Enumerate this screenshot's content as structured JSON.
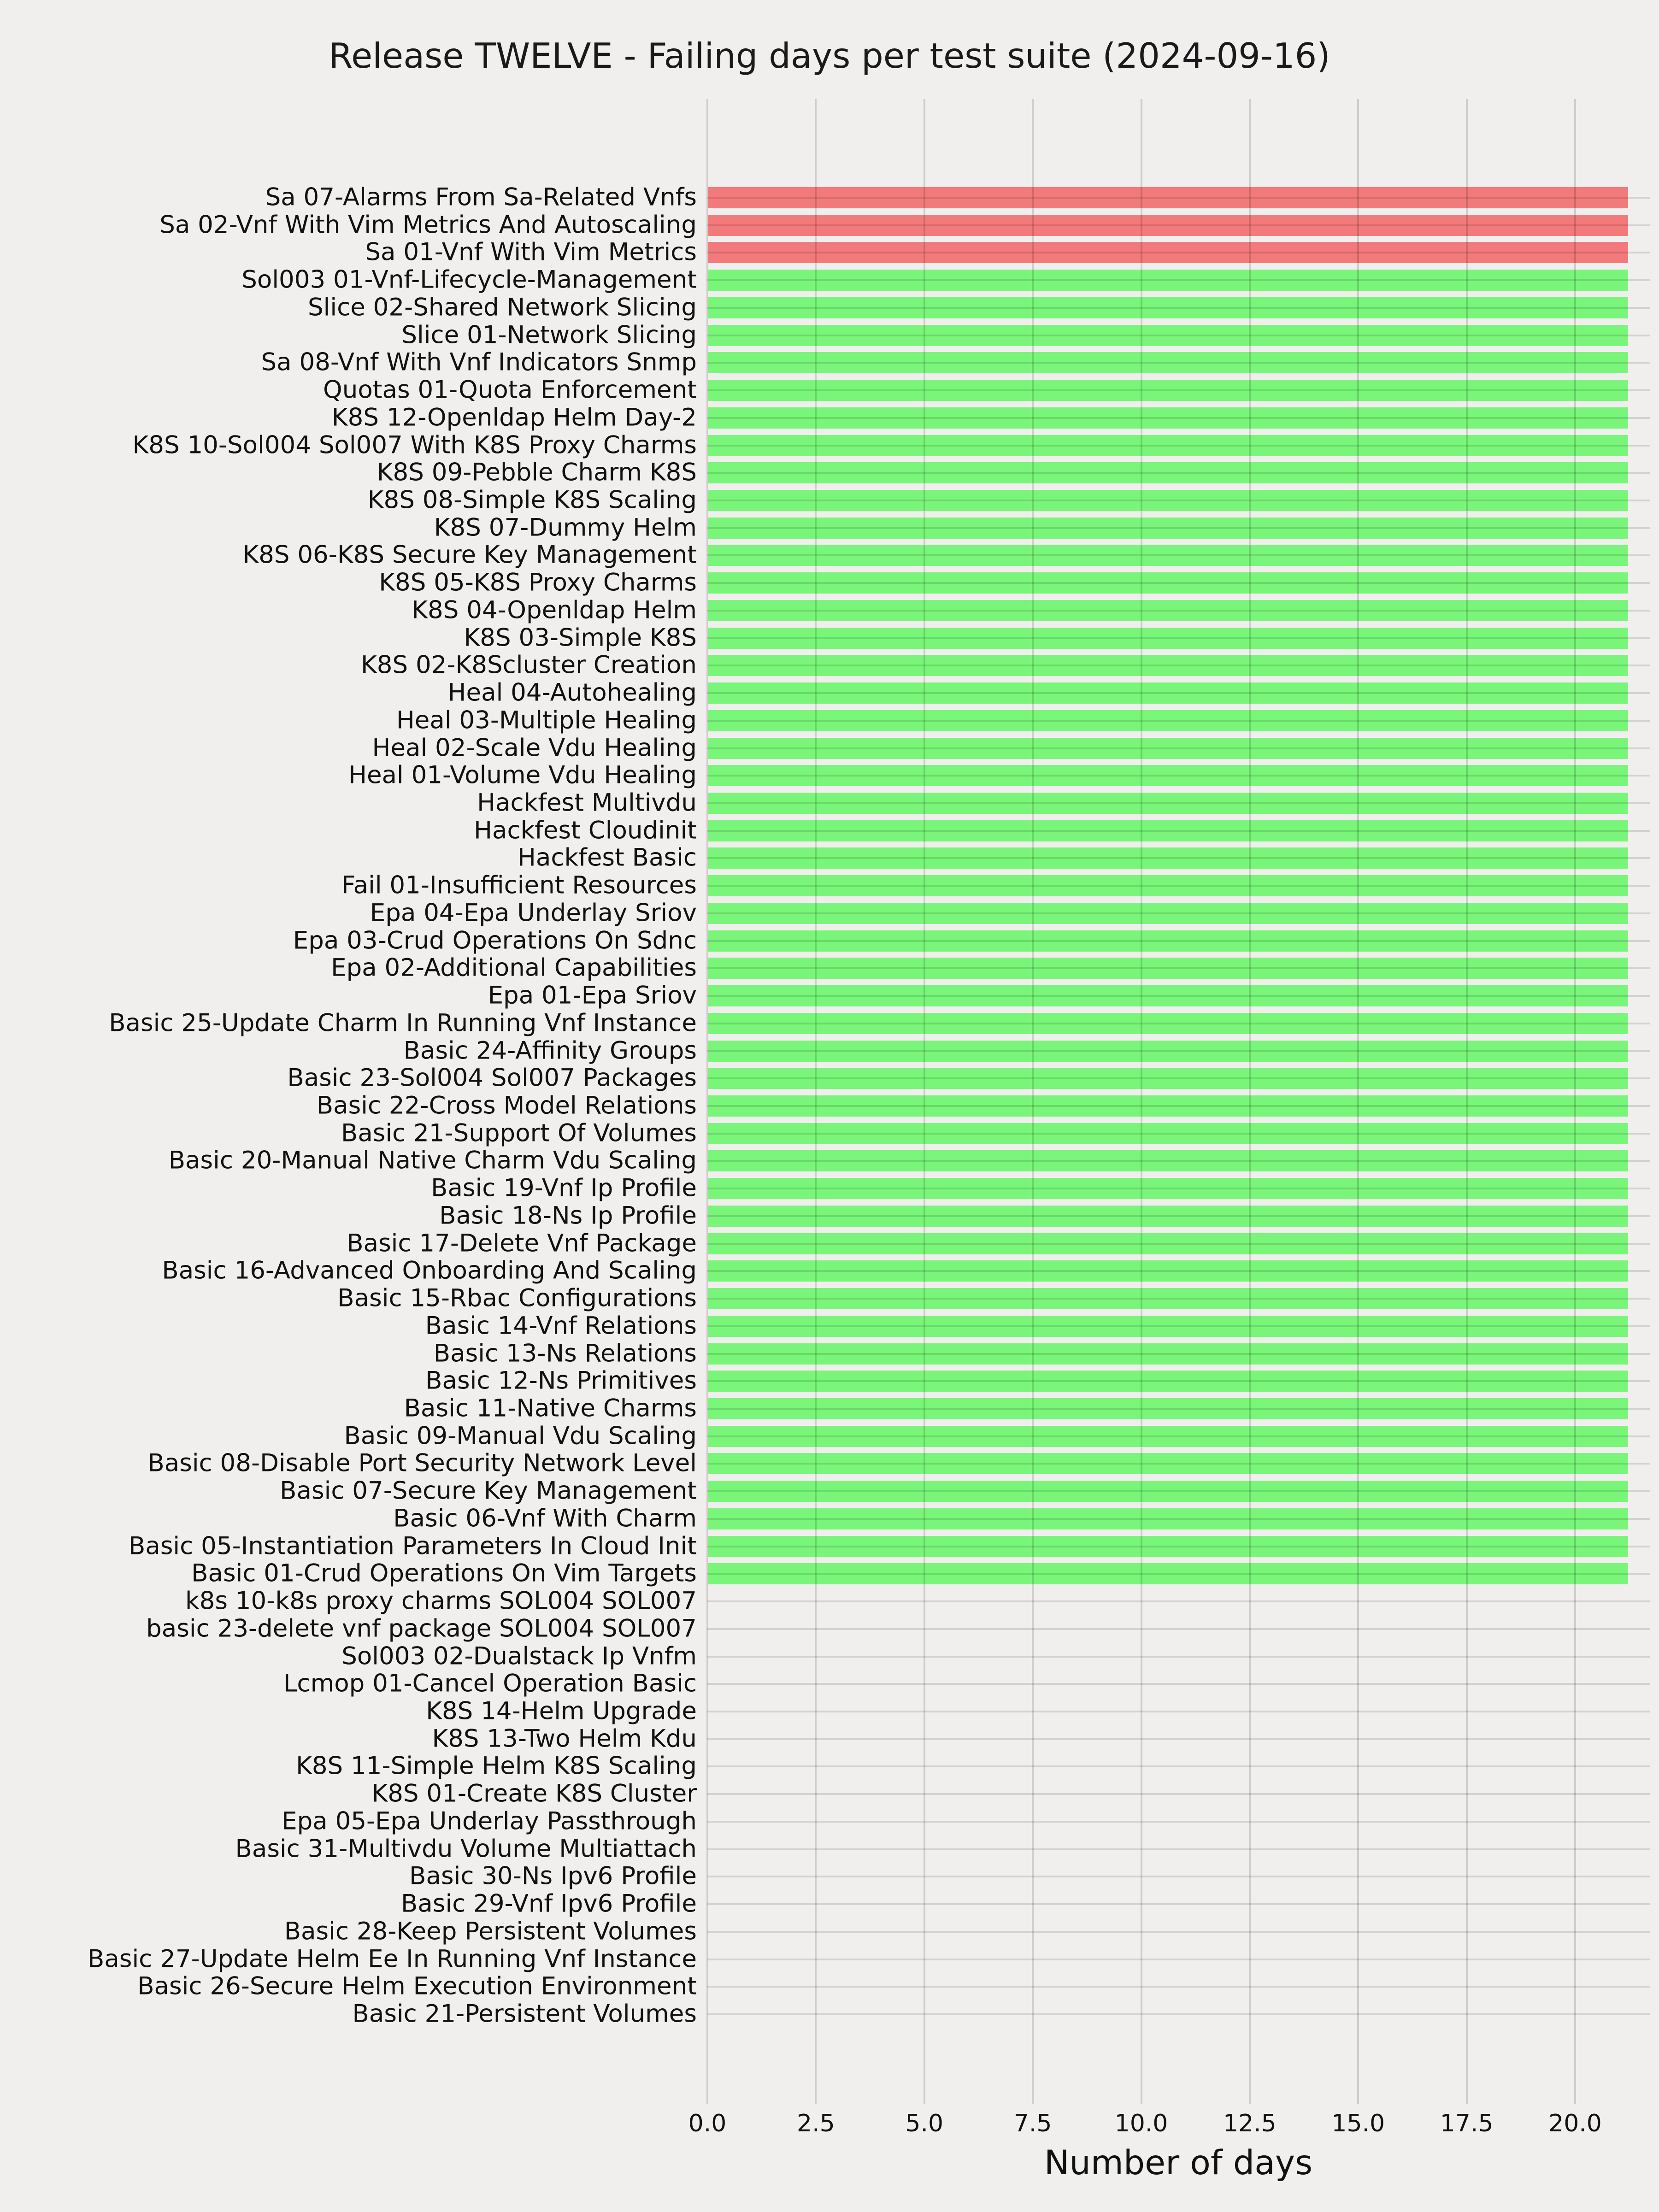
{
  "figure": {
    "background_color": "#f0efee",
    "text_color": "#111111"
  },
  "chart_data": {
    "type": "bar",
    "orientation": "horizontal",
    "title": "Release TWELVE - Failing days per test suite (2024-09-16)",
    "xlabel": "Number of days",
    "ylabel": "",
    "grid": true,
    "legend": false,
    "xlim": [
      0,
      21.7
    ],
    "x_ticks": [
      0.0,
      2.5,
      5.0,
      7.5,
      10.0,
      12.5,
      15.0,
      17.5,
      20.0
    ],
    "x_tick_labels": [
      "0.0",
      "2.5",
      "5.0",
      "7.5",
      "10.0",
      "12.5",
      "15.0",
      "17.5",
      "20.0"
    ],
    "colors": {
      "failing_bar": "#f37a7a",
      "passing_bar": "#79f679",
      "gridline": "#c9c9c9"
    },
    "categories": [
      "Sa 07-Alarms From Sa-Related Vnfs",
      "Sa 02-Vnf With Vim Metrics And Autoscaling",
      "Sa 01-Vnf With Vim Metrics",
      "Sol003 01-Vnf-Lifecycle-Management",
      "Slice 02-Shared Network Slicing",
      "Slice 01-Network Slicing",
      "Sa 08-Vnf With Vnf Indicators Snmp",
      "Quotas 01-Quota Enforcement",
      "K8S 12-Openldap Helm Day-2",
      "K8S 10-Sol004 Sol007 With K8S Proxy Charms",
      "K8S 09-Pebble Charm K8S",
      "K8S 08-Simple K8S Scaling",
      "K8S 07-Dummy Helm",
      "K8S 06-K8S Secure Key Management",
      "K8S 05-K8S Proxy Charms",
      "K8S 04-Openldap Helm",
      "K8S 03-Simple K8S",
      "K8S 02-K8Scluster Creation",
      "Heal 04-Autohealing",
      "Heal 03-Multiple Healing",
      "Heal 02-Scale Vdu Healing",
      "Heal 01-Volume Vdu Healing",
      "Hackfest Multivdu",
      "Hackfest Cloudinit",
      "Hackfest Basic",
      "Fail 01-Insufficient Resources",
      "Epa 04-Epa Underlay Sriov",
      "Epa 03-Crud Operations On Sdnc",
      "Epa 02-Additional Capabilities",
      "Epa 01-Epa Sriov",
      "Basic 25-Update Charm In Running Vnf Instance",
      "Basic 24-Affinity Groups",
      "Basic 23-Sol004 Sol007 Packages",
      "Basic 22-Cross Model Relations",
      "Basic 21-Support Of Volumes",
      "Basic 20-Manual Native Charm Vdu Scaling",
      "Basic 19-Vnf Ip Profile",
      "Basic 18-Ns Ip Profile",
      "Basic 17-Delete Vnf Package",
      "Basic 16-Advanced Onboarding And Scaling",
      "Basic 15-Rbac Configurations",
      "Basic 14-Vnf Relations",
      "Basic 13-Ns Relations",
      "Basic 12-Ns Primitives",
      "Basic 11-Native Charms",
      "Basic 09-Manual Vdu Scaling",
      "Basic 08-Disable Port Security Network Level",
      "Basic 07-Secure Key Management",
      "Basic 06-Vnf With Charm",
      "Basic 05-Instantiation Parameters In Cloud Init",
      "Basic 01-Crud Operations On Vim Targets",
      "k8s 10-k8s proxy charms SOL004 SOL007",
      "basic 23-delete vnf package SOL004 SOL007",
      "Sol003 02-Dualstack Ip Vnfm",
      "Lcmop 01-Cancel Operation Basic",
      "K8S 14-Helm Upgrade",
      "K8S 13-Two Helm Kdu",
      "K8S 11-Simple Helm K8S Scaling",
      "K8S 01-Create K8S Cluster",
      "Epa 05-Epa Underlay Passthrough",
      "Basic 31-Multivdu Volume Multiattach",
      "Basic 30-Ns Ipv6 Profile",
      "Basic 29-Vnf Ipv6 Profile",
      "Basic 28-Keep Persistent Volumes",
      "Basic 27-Update Helm Ee In Running Vnf Instance",
      "Basic 26-Secure Helm Execution Environment",
      "Basic 21-Persistent Volumes"
    ],
    "values": [
      21.2,
      21.2,
      21.2,
      21.2,
      21.2,
      21.2,
      21.2,
      21.2,
      21.2,
      21.2,
      21.2,
      21.2,
      21.2,
      21.2,
      21.2,
      21.2,
      21.2,
      21.2,
      21.2,
      21.2,
      21.2,
      21.2,
      21.2,
      21.2,
      21.2,
      21.2,
      21.2,
      21.2,
      21.2,
      21.2,
      21.2,
      21.2,
      21.2,
      21.2,
      21.2,
      21.2,
      21.2,
      21.2,
      21.2,
      21.2,
      21.2,
      21.2,
      21.2,
      21.2,
      21.2,
      21.2,
      21.2,
      21.2,
      21.2,
      21.2,
      21.2,
      0,
      0,
      0,
      0,
      0,
      0,
      0,
      0,
      0,
      0,
      0,
      0,
      0,
      0,
      0,
      0
    ],
    "statuses": [
      "failing",
      "failing",
      "failing",
      "passing",
      "passing",
      "passing",
      "passing",
      "passing",
      "passing",
      "passing",
      "passing",
      "passing",
      "passing",
      "passing",
      "passing",
      "passing",
      "passing",
      "passing",
      "passing",
      "passing",
      "passing",
      "passing",
      "passing",
      "passing",
      "passing",
      "passing",
      "passing",
      "passing",
      "passing",
      "passing",
      "passing",
      "passing",
      "passing",
      "passing",
      "passing",
      "passing",
      "passing",
      "passing",
      "passing",
      "passing",
      "passing",
      "passing",
      "passing",
      "passing",
      "passing",
      "passing",
      "passing",
      "passing",
      "passing",
      "passing",
      "passing",
      "none",
      "none",
      "none",
      "none",
      "none",
      "none",
      "none",
      "none",
      "none",
      "none",
      "none",
      "none",
      "none",
      "none",
      "none",
      "none"
    ]
  }
}
